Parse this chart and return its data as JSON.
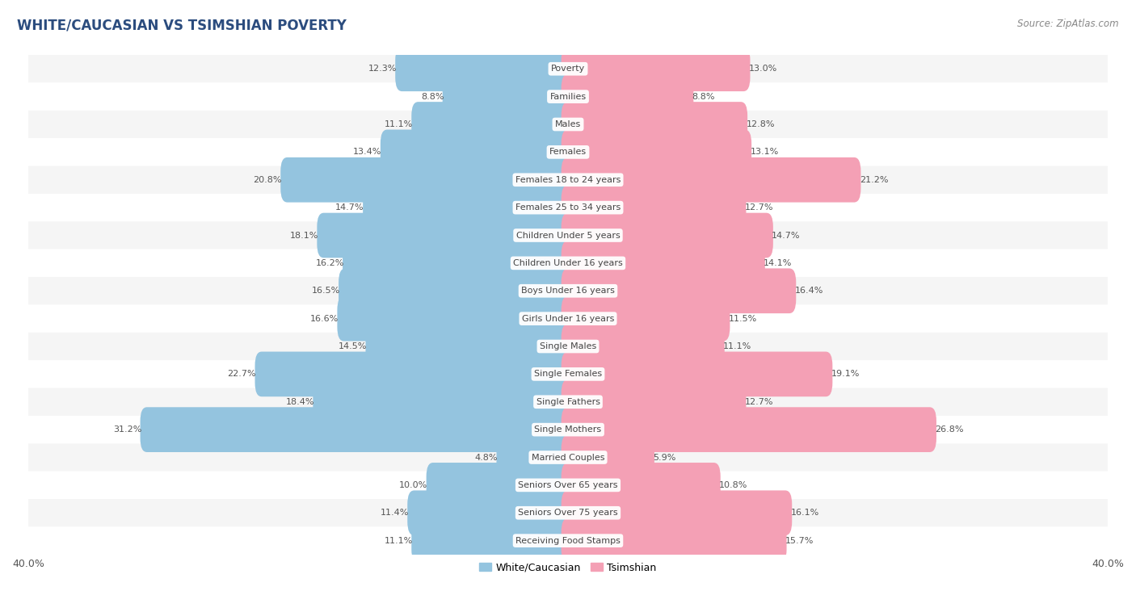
{
  "title": "WHITE/CAUCASIAN VS TSIMSHIAN POVERTY",
  "source": "Source: ZipAtlas.com",
  "categories": [
    "Poverty",
    "Families",
    "Males",
    "Females",
    "Females 18 to 24 years",
    "Females 25 to 34 years",
    "Children Under 5 years",
    "Children Under 16 years",
    "Boys Under 16 years",
    "Girls Under 16 years",
    "Single Males",
    "Single Females",
    "Single Fathers",
    "Single Mothers",
    "Married Couples",
    "Seniors Over 65 years",
    "Seniors Over 75 years",
    "Receiving Food Stamps"
  ],
  "white_values": [
    12.3,
    8.8,
    11.1,
    13.4,
    20.8,
    14.7,
    18.1,
    16.2,
    16.5,
    16.6,
    14.5,
    22.7,
    18.4,
    31.2,
    4.8,
    10.0,
    11.4,
    11.1
  ],
  "tsimshian_values": [
    13.0,
    8.8,
    12.8,
    13.1,
    21.2,
    12.7,
    14.7,
    14.1,
    16.4,
    11.5,
    11.1,
    19.1,
    12.7,
    26.8,
    5.9,
    10.8,
    16.1,
    15.7
  ],
  "white_color": "#94c4df",
  "tsimshian_color": "#f4a0b5",
  "xlim": 40.0,
  "bar_height": 0.62,
  "bg_color": "#ffffff",
  "row_colors": [
    "#f5f5f5",
    "#ffffff"
  ],
  "label_fontsize": 8.0,
  "value_fontsize": 8.0,
  "title_fontsize": 12,
  "legend_fontsize": 9,
  "title_color": "#2b4c7e",
  "value_color": "#555555"
}
